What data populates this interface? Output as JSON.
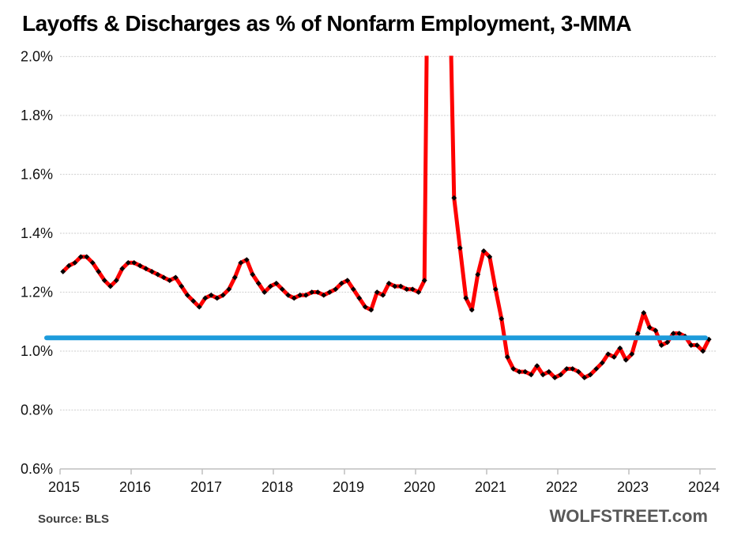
{
  "page": {
    "title": "Layoffs & Discharges as % of Nonfarm Employment, 3-MMA",
    "source": "Source: BLS",
    "branding": "WOLFSTREET.com"
  },
  "colors": {
    "series_red": "#FE0000",
    "marker_black": "#000000",
    "reference_blue": "#1D9BDB",
    "gridline_gray": "#D6D6D6",
    "axis_gray": "#BFBFBF",
    "source_text": "#3F3F3F",
    "branding_text": "#595959",
    "background": "#FFFFFF"
  },
  "chart_data": {
    "type": "line",
    "title": "Layoffs & Discharges as % of Nonfarm Employment, 3-MMA",
    "xlabel": "",
    "ylabel": "",
    "grid": true,
    "legend": false,
    "y_axis": {
      "min": 0.6,
      "max": 2.0,
      "tick_step": 0.2,
      "tick_labels": [
        "2.0%",
        "1.8%",
        "1.6%",
        "1.4%",
        "1.2%",
        "1.0%",
        "0.8%",
        "0.6%"
      ],
      "values_clipped_above": 2.0
    },
    "x_axis": {
      "tick_labels": [
        "2015",
        "2016",
        "2017",
        "2018",
        "2019",
        "2020",
        "2021",
        "2022",
        "2023",
        "2024"
      ],
      "frequency": "monthly"
    },
    "reference_line": {
      "name": "horizontal-reference-level",
      "value": 1.045,
      "color": "#1D9BDB"
    },
    "series": [
      {
        "name": "Layoffs & discharges as % of nonfarm employment, 3-month moving average",
        "unit": "%",
        "color": "#FE0000",
        "marker_color": "#000000",
        "start_month": "2015-01",
        "end_month": "2024-02",
        "values": [
          1.27,
          1.29,
          1.3,
          1.32,
          1.32,
          1.3,
          1.27,
          1.24,
          1.22,
          1.24,
          1.28,
          1.3,
          1.3,
          1.29,
          1.28,
          1.27,
          1.26,
          1.25,
          1.24,
          1.25,
          1.22,
          1.19,
          1.17,
          1.15,
          1.18,
          1.19,
          1.18,
          1.19,
          1.21,
          1.25,
          1.3,
          1.31,
          1.26,
          1.23,
          1.2,
          1.22,
          1.23,
          1.21,
          1.19,
          1.18,
          1.19,
          1.19,
          1.2,
          1.2,
          1.19,
          1.2,
          1.21,
          1.23,
          1.24,
          1.21,
          1.18,
          1.15,
          1.14,
          1.2,
          1.19,
          1.23,
          1.22,
          1.22,
          1.21,
          1.21,
          1.2,
          1.24,
          3.3,
          4.7,
          4.6,
          2.5,
          1.52,
          1.35,
          1.18,
          1.14,
          1.26,
          1.34,
          1.32,
          1.21,
          1.11,
          0.98,
          0.94,
          0.93,
          0.93,
          0.92,
          0.95,
          0.92,
          0.93,
          0.91,
          0.92,
          0.94,
          0.94,
          0.93,
          0.91,
          0.92,
          0.94,
          0.96,
          0.99,
          0.98,
          1.01,
          0.97,
          0.99,
          1.06,
          1.13,
          1.08,
          1.07,
          1.02,
          1.03,
          1.06,
          1.06,
          1.05,
          1.02,
          1.02,
          1.0,
          1.04
        ]
      }
    ]
  }
}
